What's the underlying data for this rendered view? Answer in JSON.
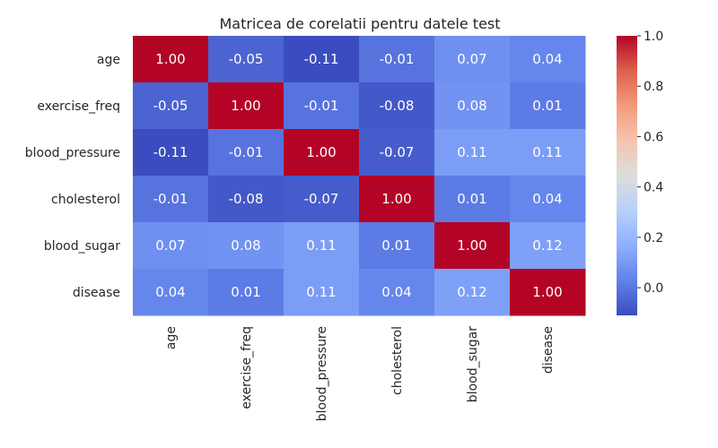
{
  "chart_data": {
    "type": "heatmap",
    "title": "Matricea de corelatii pentru datele test",
    "labels": [
      "age",
      "exercise_freq",
      "blood_pressure",
      "cholesterol",
      "blood_sugar",
      "disease"
    ],
    "values": [
      [
        1.0,
        -0.05,
        -0.11,
        -0.01,
        0.07,
        0.04
      ],
      [
        -0.05,
        1.0,
        -0.01,
        -0.08,
        0.08,
        0.01
      ],
      [
        -0.11,
        -0.01,
        1.0,
        -0.07,
        0.11,
        0.11
      ],
      [
        -0.01,
        -0.08,
        -0.07,
        1.0,
        0.01,
        0.04
      ],
      [
        0.07,
        0.08,
        0.11,
        0.01,
        1.0,
        0.12
      ],
      [
        0.04,
        0.01,
        0.11,
        0.04,
        0.12,
        1.0
      ]
    ],
    "value_format": "0.00",
    "colormap": "coolwarm",
    "colorbar": {
      "range": [
        -0.11,
        1.0
      ],
      "ticks": [
        -0.0,
        0.2,
        0.4,
        0.6,
        0.8,
        1.0
      ],
      "tick_labels": [
        "0.0",
        "0.2",
        "0.4",
        "0.6",
        "0.8",
        "1.0"
      ]
    },
    "cell_text_colors": {
      "light": "#ffffff",
      "dark": "#262626"
    }
  }
}
